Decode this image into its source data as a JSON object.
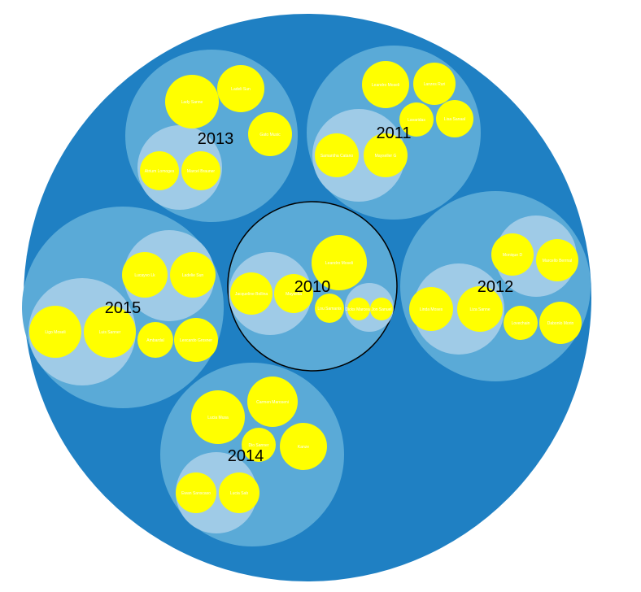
{
  "colors": {
    "root": "#1f80c3",
    "year": "#5aaad7",
    "group": "#9fcbe7",
    "leaf": "#ffff00",
    "leaf_text": "#ffffff",
    "selected_stroke": "#000000"
  },
  "chart_data": {
    "type": "circle-packing",
    "title": "",
    "selected": "2010",
    "years": [
      {
        "name": "2013",
        "groups": [
          {
            "leaves": [
              {
                "name": "Lady Sanne"
              },
              {
                "name": "Ladeli Sun"
              },
              {
                "name": "Gato Music"
              }
            ]
          },
          {
            "leaves": [
              {
                "name": "Atrium Lomoges"
              },
              {
                "name": "Marcel Brauner"
              }
            ]
          }
        ]
      },
      {
        "name": "2011",
        "groups": [
          {
            "leaves": [
              {
                "name": "Leandro Moseli"
              },
              {
                "name": "Lanzes Ruri"
              },
              {
                "name": "Lavaridas"
              },
              {
                "name": "Lisa Sanaal"
              }
            ]
          },
          {
            "leaves": [
              {
                "name": "Samantha Catano"
              },
              {
                "name": "Mayseller G"
              }
            ]
          }
        ]
      },
      {
        "name": "2010",
        "groups": [
          {
            "leaves": [
              {
                "name": "Leandro Moseli"
              },
              {
                "name": "Jacqueline Bollina"
              },
              {
                "name": "Maysella"
              }
            ]
          },
          {
            "leaves": [
              {
                "name": "Lou Samanis"
              },
              {
                "name": "Dicks Marceau"
              },
              {
                "name": "Jon Sanuel"
              }
            ]
          }
        ]
      },
      {
        "name": "2012",
        "groups": [
          {
            "leaves": [
              {
                "name": "Monique D"
              },
              {
                "name": "Marcello Berrnal"
              },
              {
                "name": "Lovechain"
              },
              {
                "name": "Dabonlo Morin"
              }
            ]
          },
          {
            "leaves": [
              {
                "name": "Linda Moses"
              },
              {
                "name": "Liza Sanne"
              }
            ]
          }
        ]
      },
      {
        "name": "2015",
        "groups": [
          {
            "leaves": [
              {
                "name": "Lucayvo Lk"
              },
              {
                "name": "Ladelie Sun"
              },
              {
                "name": "Ambardal"
              },
              {
                "name": "Lexcardo Grosner"
              }
            ]
          },
          {
            "leaves": [
              {
                "name": "Ligo Moseli"
              },
              {
                "name": "Luis Sanner"
              }
            ]
          }
        ]
      },
      {
        "name": "2014",
        "groups": [
          {
            "leaves": [
              {
                "name": "Lucia Musa"
              },
              {
                "name": "Carmen Maroseni"
              },
              {
                "name": "Dio Sanner"
              },
              {
                "name": "Kanze"
              }
            ]
          },
          {
            "leaves": [
              {
                "name": "Ewan Sanscaso"
              },
              {
                "name": "Lucia Sab"
              }
            ]
          }
        ]
      }
    ]
  }
}
